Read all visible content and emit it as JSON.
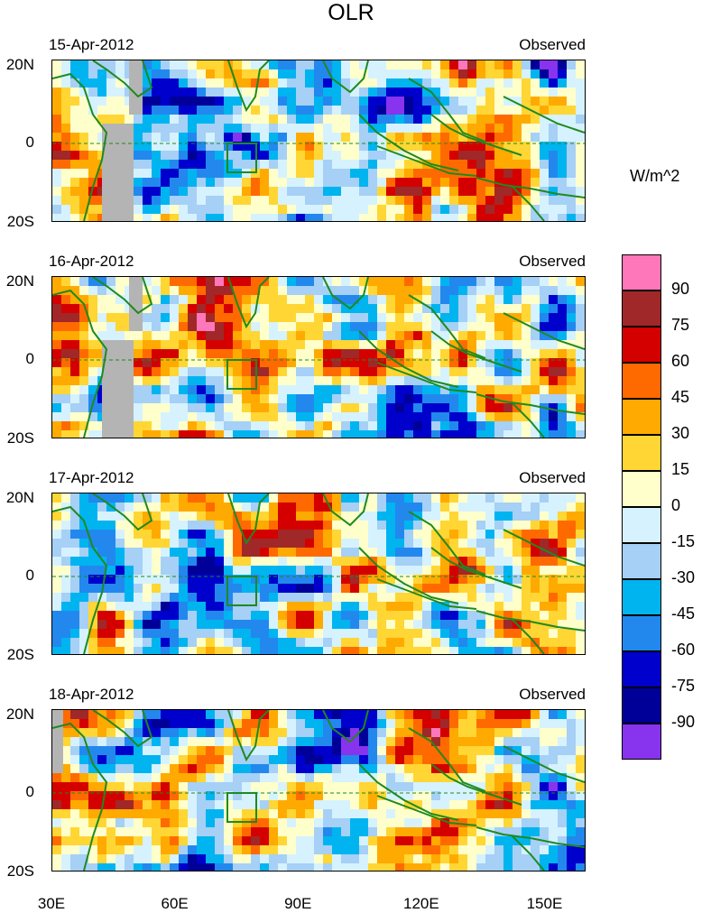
{
  "chart_data": {
    "type": "heatmap",
    "title": "OLR",
    "units": "W/m^2",
    "series_label": "Observed",
    "x_ticks": [
      "30E",
      "60E",
      "90E",
      "120E",
      "150E"
    ],
    "x_range_deg": [
      30,
      160
    ],
    "y_ticks": [
      "20N",
      "0",
      "20S"
    ],
    "y_range_deg": [
      -20,
      20
    ],
    "panels": [
      {
        "date": "15-Apr-2012",
        "label": "Observed"
      },
      {
        "date": "16-Apr-2012",
        "label": "Observed"
      },
      {
        "date": "17-Apr-2012",
        "label": "Observed"
      },
      {
        "date": "18-Apr-2012",
        "label": "Observed"
      }
    ],
    "colorbar": {
      "labels": [
        "90",
        "75",
        "60",
        "45",
        "30",
        "15",
        "0",
        "-15",
        "-30",
        "-45",
        "-60",
        "-75",
        "-90"
      ],
      "colors": [
        "#ff77bb",
        "#a02828",
        "#d40000",
        "#ff6a00",
        "#ffaa00",
        "#ffd633",
        "#ffffcc",
        "#d6f2ff",
        "#a6d0f5",
        "#00b4f0",
        "#2288ee",
        "#0000cc",
        "#000099",
        "#8833ee"
      ]
    }
  },
  "colors": {
    "coastline": "#1e8a1e",
    "missing": "#b4b4b4"
  }
}
